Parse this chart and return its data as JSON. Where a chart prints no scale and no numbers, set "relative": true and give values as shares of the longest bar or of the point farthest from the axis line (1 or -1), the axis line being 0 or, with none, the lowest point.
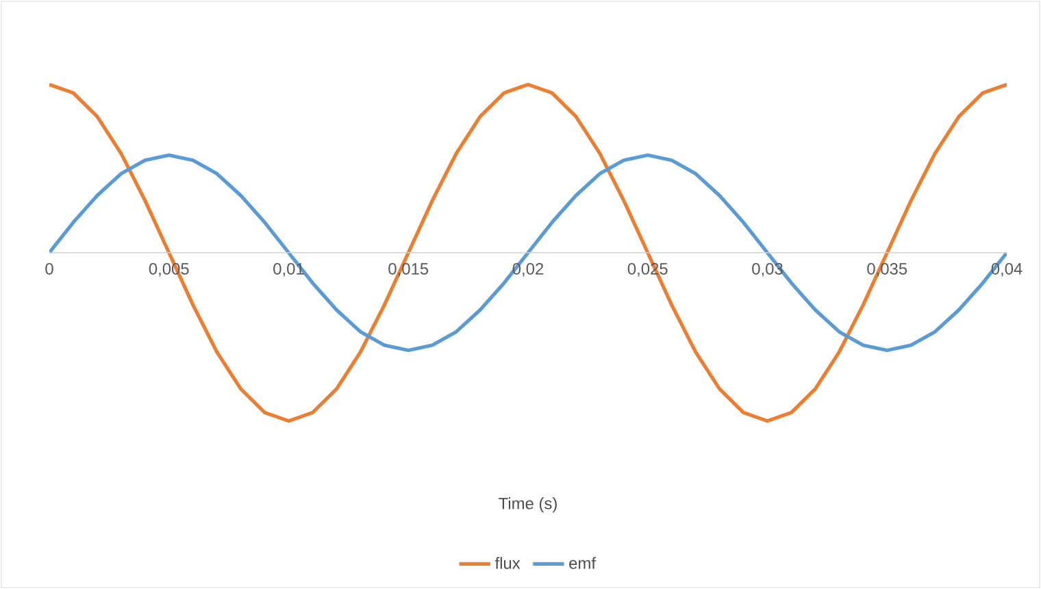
{
  "chart_data": {
    "type": "line",
    "relative": true,
    "xlabel": "Time (s)",
    "legend": "bottom",
    "x": [
      0,
      0.001,
      0.002,
      0.003,
      0.004,
      0.005,
      0.006,
      0.007,
      0.008,
      0.009,
      0.01,
      0.011,
      0.012,
      0.013,
      0.014,
      0.015,
      0.016,
      0.017,
      0.018,
      0.019,
      0.02,
      0.021,
      0.022,
      0.023,
      0.024,
      0.025,
      0.026,
      0.027,
      0.028,
      0.029,
      0.03,
      0.031,
      0.032,
      0.033,
      0.034,
      0.035,
      0.036,
      0.037,
      0.038,
      0.039,
      0.04
    ],
    "xlim": [
      0,
      0.04
    ],
    "xticks": [
      0,
      {
        "value": 0.005,
        "label": "0,005"
      },
      {
        "value": 0.01,
        "label": "0,01"
      },
      {
        "value": 0.015,
        "label": "0,015"
      },
      {
        "value": 0.02,
        "label": "0,02"
      },
      {
        "value": 0.025,
        "label": "0,025"
      },
      {
        "value": 0.03,
        "label": "0,03"
      },
      {
        "value": 0.035,
        "label": "0,035"
      },
      {
        "value": 0.04,
        "label": "0,04"
      }
    ],
    "series": [
      {
        "name": "flux",
        "color": "#ed7d31",
        "values": [
          1,
          0.95,
          0.81,
          0.59,
          0.31,
          0,
          -0.31,
          -0.59,
          -0.81,
          -0.95,
          -1,
          -0.95,
          -0.81,
          -0.59,
          -0.31,
          0,
          0.31,
          0.59,
          0.81,
          0.95,
          1,
          0.95,
          0.81,
          0.59,
          0.31,
          0,
          -0.31,
          -0.59,
          -0.81,
          -0.95,
          -1,
          -0.95,
          -0.81,
          -0.59,
          -0.31,
          0,
          0.31,
          0.59,
          0.81,
          0.95,
          1
        ]
      },
      {
        "name": "emf",
        "color": "#5b9bd5",
        "values": [
          0,
          0.18,
          0.34,
          0.47,
          0.55,
          0.58,
          0.55,
          0.47,
          0.34,
          0.18,
          0,
          -0.18,
          -0.34,
          -0.47,
          -0.55,
          -0.58,
          -0.55,
          -0.47,
          -0.34,
          -0.18,
          0,
          0.18,
          0.34,
          0.47,
          0.55,
          0.58,
          0.55,
          0.47,
          0.34,
          0.18,
          0,
          -0.18,
          -0.34,
          -0.47,
          -0.55,
          -0.58,
          -0.55,
          -0.47,
          -0.34,
          -0.18,
          0
        ]
      }
    ]
  }
}
